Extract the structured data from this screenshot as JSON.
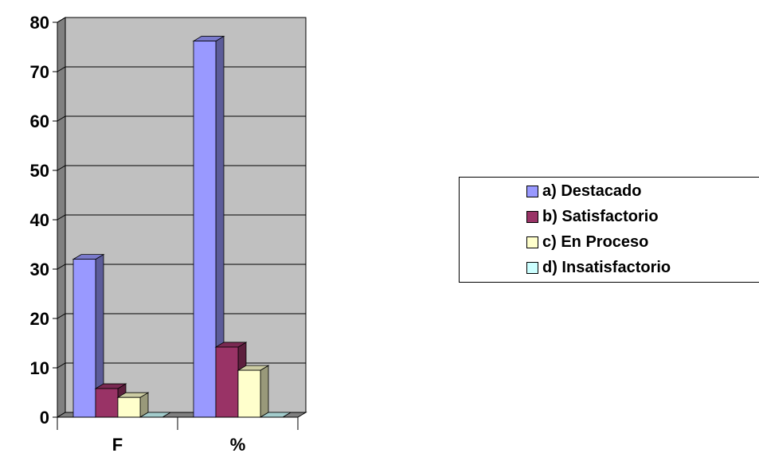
{
  "chart_data": {
    "type": "bar",
    "categories": [
      "F",
      "%"
    ],
    "series": [
      {
        "name": "a) Destacado",
        "values": [
          32,
          76.2
        ],
        "color": "#9999FF"
      },
      {
        "name": "b) Satisfactorio",
        "values": [
          5.8,
          14.2
        ],
        "color": "#993366"
      },
      {
        "name": "c) En Proceso",
        "values": [
          4,
          9.5
        ],
        "color": "#FFFFCC"
      },
      {
        "name": "d) Insatisfactorio",
        "values": [
          0,
          0
        ],
        "color": "#CCFFFF"
      }
    ],
    "title": "",
    "xlabel": "",
    "ylabel": "",
    "ylim": [
      0,
      80
    ],
    "yticks": [
      "0",
      "10",
      "20",
      "30",
      "40",
      "50",
      "60",
      "70",
      "80"
    ],
    "grid": true,
    "legend_position": "right",
    "plot_background": "#C0C0C0",
    "three_d": true
  }
}
